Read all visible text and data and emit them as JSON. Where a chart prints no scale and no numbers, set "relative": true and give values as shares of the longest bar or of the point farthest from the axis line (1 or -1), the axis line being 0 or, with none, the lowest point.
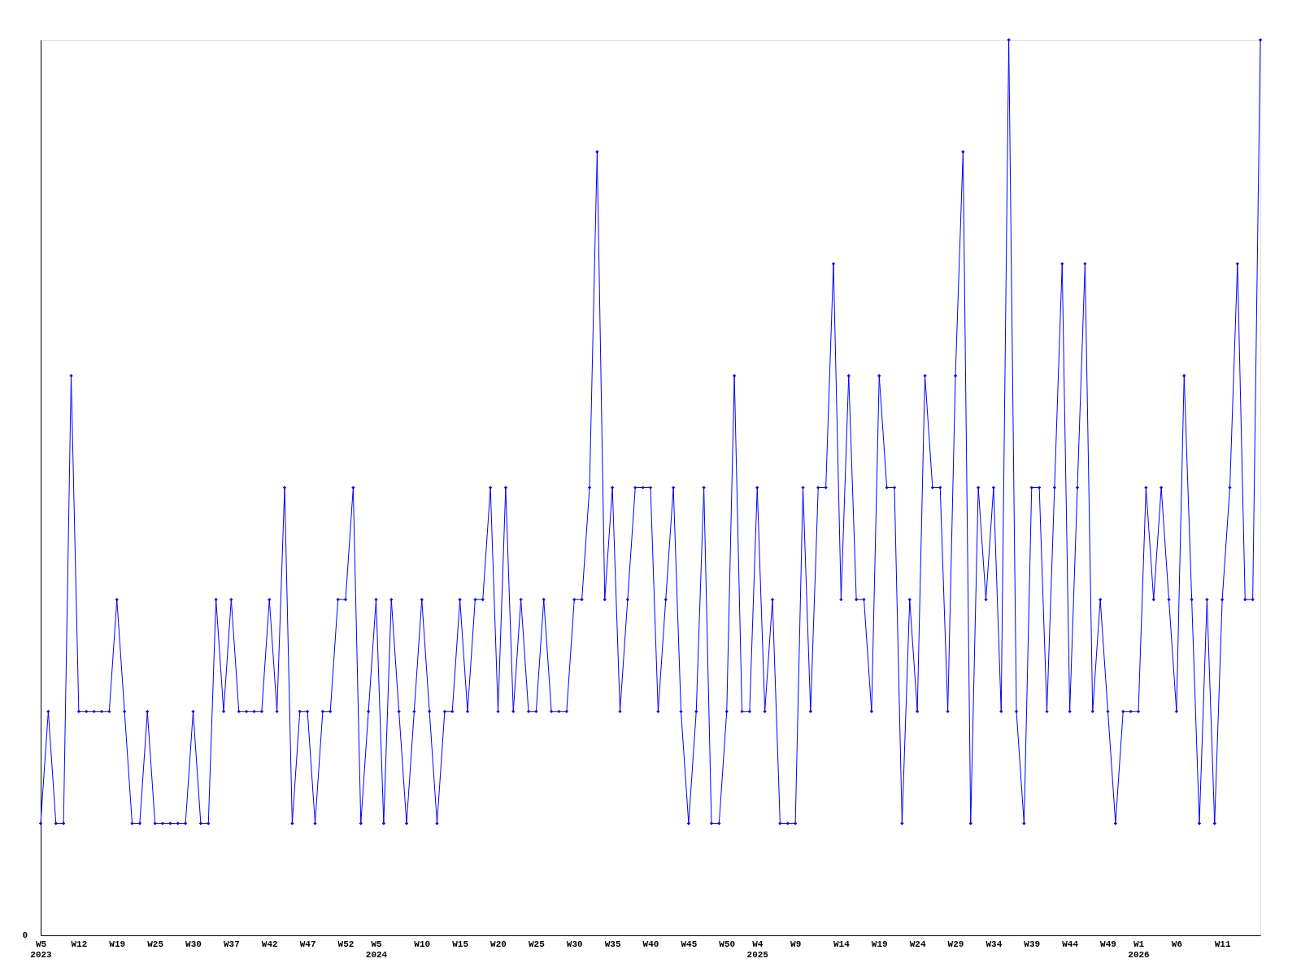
{
  "chart_data": {
    "type": "line",
    "relative": true,
    "marker": "diamond",
    "line_style": "solid",
    "grid": false,
    "categories": [
      "W5\n2023",
      null,
      null,
      null,
      null,
      "W12",
      null,
      null,
      null,
      null,
      "W19",
      null,
      null,
      null,
      null,
      "W25",
      null,
      null,
      null,
      null,
      "W30",
      null,
      null,
      null,
      null,
      "W37",
      null,
      null,
      null,
      null,
      "W42",
      null,
      null,
      null,
      null,
      "W47",
      null,
      null,
      null,
      null,
      "W52",
      null,
      null,
      null,
      "W5\n2024",
      null,
      null,
      null,
      null,
      null,
      "W10",
      null,
      null,
      null,
      null,
      "W15",
      null,
      null,
      null,
      null,
      "W20",
      null,
      null,
      null,
      null,
      "W25",
      null,
      null,
      null,
      null,
      "W30",
      null,
      null,
      null,
      null,
      "W35",
      null,
      null,
      null,
      null,
      "W40",
      null,
      null,
      null,
      null,
      "W45",
      null,
      null,
      null,
      null,
      "W50",
      null,
      null,
      null,
      "W4\n2025",
      null,
      null,
      null,
      null,
      "W9",
      null,
      null,
      null,
      null,
      null,
      "W14",
      null,
      null,
      null,
      null,
      "W19",
      null,
      null,
      null,
      null,
      "W24",
      null,
      null,
      null,
      null,
      "W29",
      null,
      null,
      null,
      null,
      "W34",
      null,
      null,
      null,
      null,
      "W39",
      null,
      null,
      null,
      null,
      "W44",
      null,
      null,
      null,
      null,
      "W49",
      null,
      null,
      null,
      "W1\n2026",
      null,
      null,
      null,
      null,
      "W6",
      null,
      null,
      null,
      null,
      null,
      "W11",
      null,
      null,
      null,
      null,
      null
    ],
    "series": [
      {
        "color": "#0000ff",
        "values": [
          0.125,
          0.25,
          0.125,
          0.125,
          0.625,
          0.25,
          0.25,
          0.25,
          0.25,
          0.25,
          0.375,
          0.25,
          0.125,
          0.125,
          0.25,
          0.125,
          0.125,
          0.125,
          0.125,
          0.125,
          0.25,
          0.125,
          0.125,
          0.375,
          0.25,
          0.375,
          0.25,
          0.25,
          0.25,
          0.25,
          0.375,
          0.25,
          0.5,
          0.125,
          0.25,
          0.25,
          0.125,
          0.25,
          0.25,
          0.375,
          0.375,
          0.5,
          0.125,
          0.25,
          0.375,
          0.125,
          0.375,
          0.25,
          0.125,
          0.25,
          0.375,
          0.25,
          0.125,
          0.25,
          0.25,
          0.375,
          0.25,
          0.375,
          0.375,
          0.5,
          0.25,
          0.5,
          0.25,
          0.375,
          0.25,
          0.25,
          0.375,
          0.25,
          0.25,
          0.25,
          0.375,
          0.375,
          0.5,
          0.875,
          0.375,
          0.5,
          0.25,
          0.375,
          0.5,
          0.5,
          0.5,
          0.25,
          0.375,
          0.5,
          0.25,
          0.125,
          0.25,
          0.5,
          0.125,
          0.125,
          0.25,
          0.625,
          0.25,
          0.25,
          0.5,
          0.25,
          0.375,
          0.125,
          0.125,
          0.125,
          0.5,
          0.25,
          0.5,
          0.5,
          0.75,
          0.375,
          0.625,
          0.375,
          0.375,
          0.25,
          0.625,
          0.5,
          0.5,
          0.125,
          0.375,
          0.25,
          0.625,
          0.5,
          0.5,
          0.25,
          0.625,
          0.875,
          0.125,
          0.5,
          0.375,
          0.5,
          0.25,
          1,
          0.25,
          0.125,
          0.5,
          0.5,
          0.25,
          0.5,
          0.75,
          0.25,
          0.5,
          0.75,
          0.25,
          0.375,
          0.25,
          0.125,
          0.25,
          0.25,
          0.25,
          0.5,
          0.375,
          0.5,
          0.375,
          0.25,
          0.625,
          0.375,
          0.125,
          0.375,
          0.125,
          0.375,
          0.5,
          0.75,
          0.375,
          0.375,
          1
        ]
      }
    ],
    "annotations": [
      "0"
    ]
  }
}
